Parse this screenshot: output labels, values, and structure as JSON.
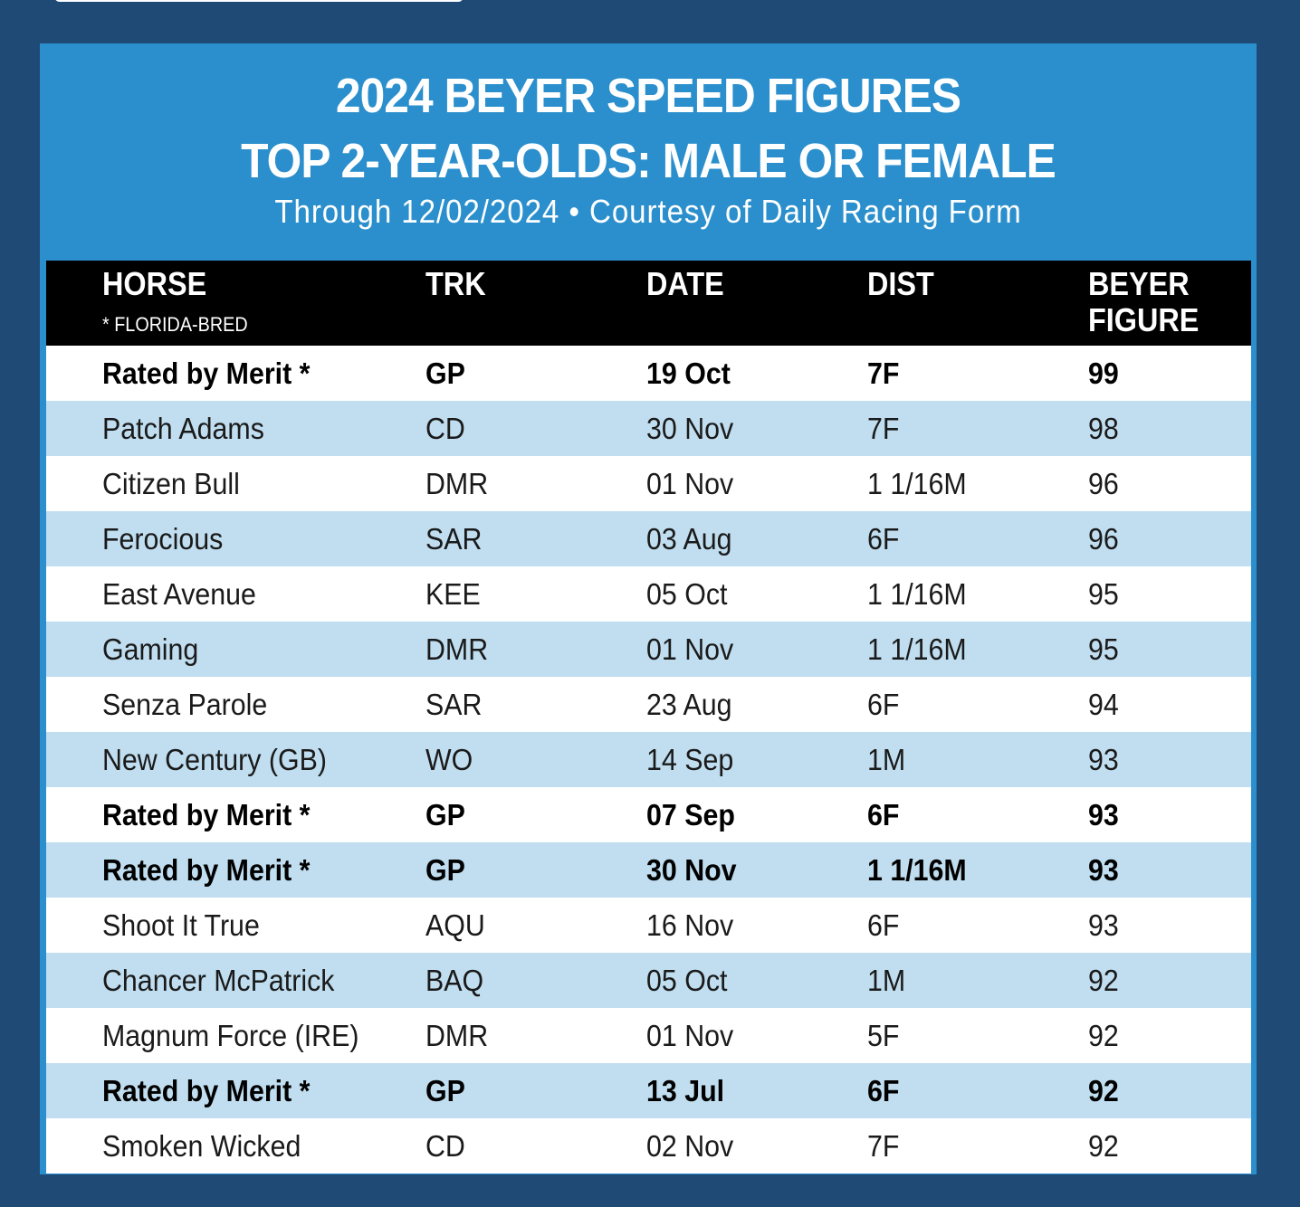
{
  "title_line1": "2024 BEYER SPEED FIGURES",
  "title_line2": "TOP 2-YEAR-OLDS: MALE OR FEMALE",
  "subtitle": "Through 12/02/2024 • Courtesy of Daily Racing Form",
  "columns": {
    "horse": "HORSE",
    "horse_note": "* FLORIDA-BRED",
    "trk": "TRK",
    "date": "DATE",
    "dist": "DIST",
    "beyer_line1": "BEYER",
    "beyer_line2": "FIGURE"
  },
  "colors": {
    "page_bg": "#1f4a75",
    "header_bg": "#2a8fcc",
    "column_header_bg": "#000000",
    "alt_row_bg": "#c0def0",
    "row_bg": "#ffffff"
  },
  "rows": [
    {
      "horse": "Rated by Merit *",
      "trk": "GP",
      "date": "19 Oct",
      "dist": "7F",
      "beyer": "99",
      "bold": true
    },
    {
      "horse": "Patch Adams",
      "trk": "CD",
      "date": "30 Nov",
      "dist": "7F",
      "beyer": "98",
      "bold": false
    },
    {
      "horse": "Citizen Bull",
      "trk": "DMR",
      "date": "01 Nov",
      "dist": "1 1/16M",
      "beyer": "96",
      "bold": false
    },
    {
      "horse": "Ferocious",
      "trk": "SAR",
      "date": "03 Aug",
      "dist": "6F",
      "beyer": "96",
      "bold": false
    },
    {
      "horse": "East Avenue",
      "trk": "KEE",
      "date": "05 Oct",
      "dist": "1 1/16M",
      "beyer": "95",
      "bold": false
    },
    {
      "horse": "Gaming",
      "trk": "DMR",
      "date": "01 Nov",
      "dist": "1 1/16M",
      "beyer": "95",
      "bold": false
    },
    {
      "horse": "Senza Parole",
      "trk": "SAR",
      "date": "23 Aug",
      "dist": "6F",
      "beyer": "94",
      "bold": false
    },
    {
      "horse": "New Century (GB)",
      "trk": "WO",
      "date": "14 Sep",
      "dist": "1M",
      "beyer": "93",
      "bold": false
    },
    {
      "horse": "Rated by Merit *",
      "trk": "GP",
      "date": "07 Sep",
      "dist": "6F",
      "beyer": "93",
      "bold": true
    },
    {
      "horse": "Rated by Merit *",
      "trk": "GP",
      "date": "30 Nov",
      "dist": "1 1/16M",
      "beyer": "93",
      "bold": true
    },
    {
      "horse": "Shoot It True",
      "trk": "AQU",
      "date": "16 Nov",
      "dist": "6F",
      "beyer": "93",
      "bold": false
    },
    {
      "horse": "Chancer McPatrick",
      "trk": "BAQ",
      "date": "05 Oct",
      "dist": "1M",
      "beyer": "92",
      "bold": false
    },
    {
      "horse": "Magnum Force (IRE)",
      "trk": "DMR",
      "date": "01 Nov",
      "dist": "5F",
      "beyer": "92",
      "bold": false
    },
    {
      "horse": "Rated by Merit *",
      "trk": "GP",
      "date": "13 Jul",
      "dist": "6F",
      "beyer": "92",
      "bold": true
    },
    {
      "horse": "Smoken Wicked",
      "trk": "CD",
      "date": "02 Nov",
      "dist": "7F",
      "beyer": "92",
      "bold": false
    }
  ]
}
